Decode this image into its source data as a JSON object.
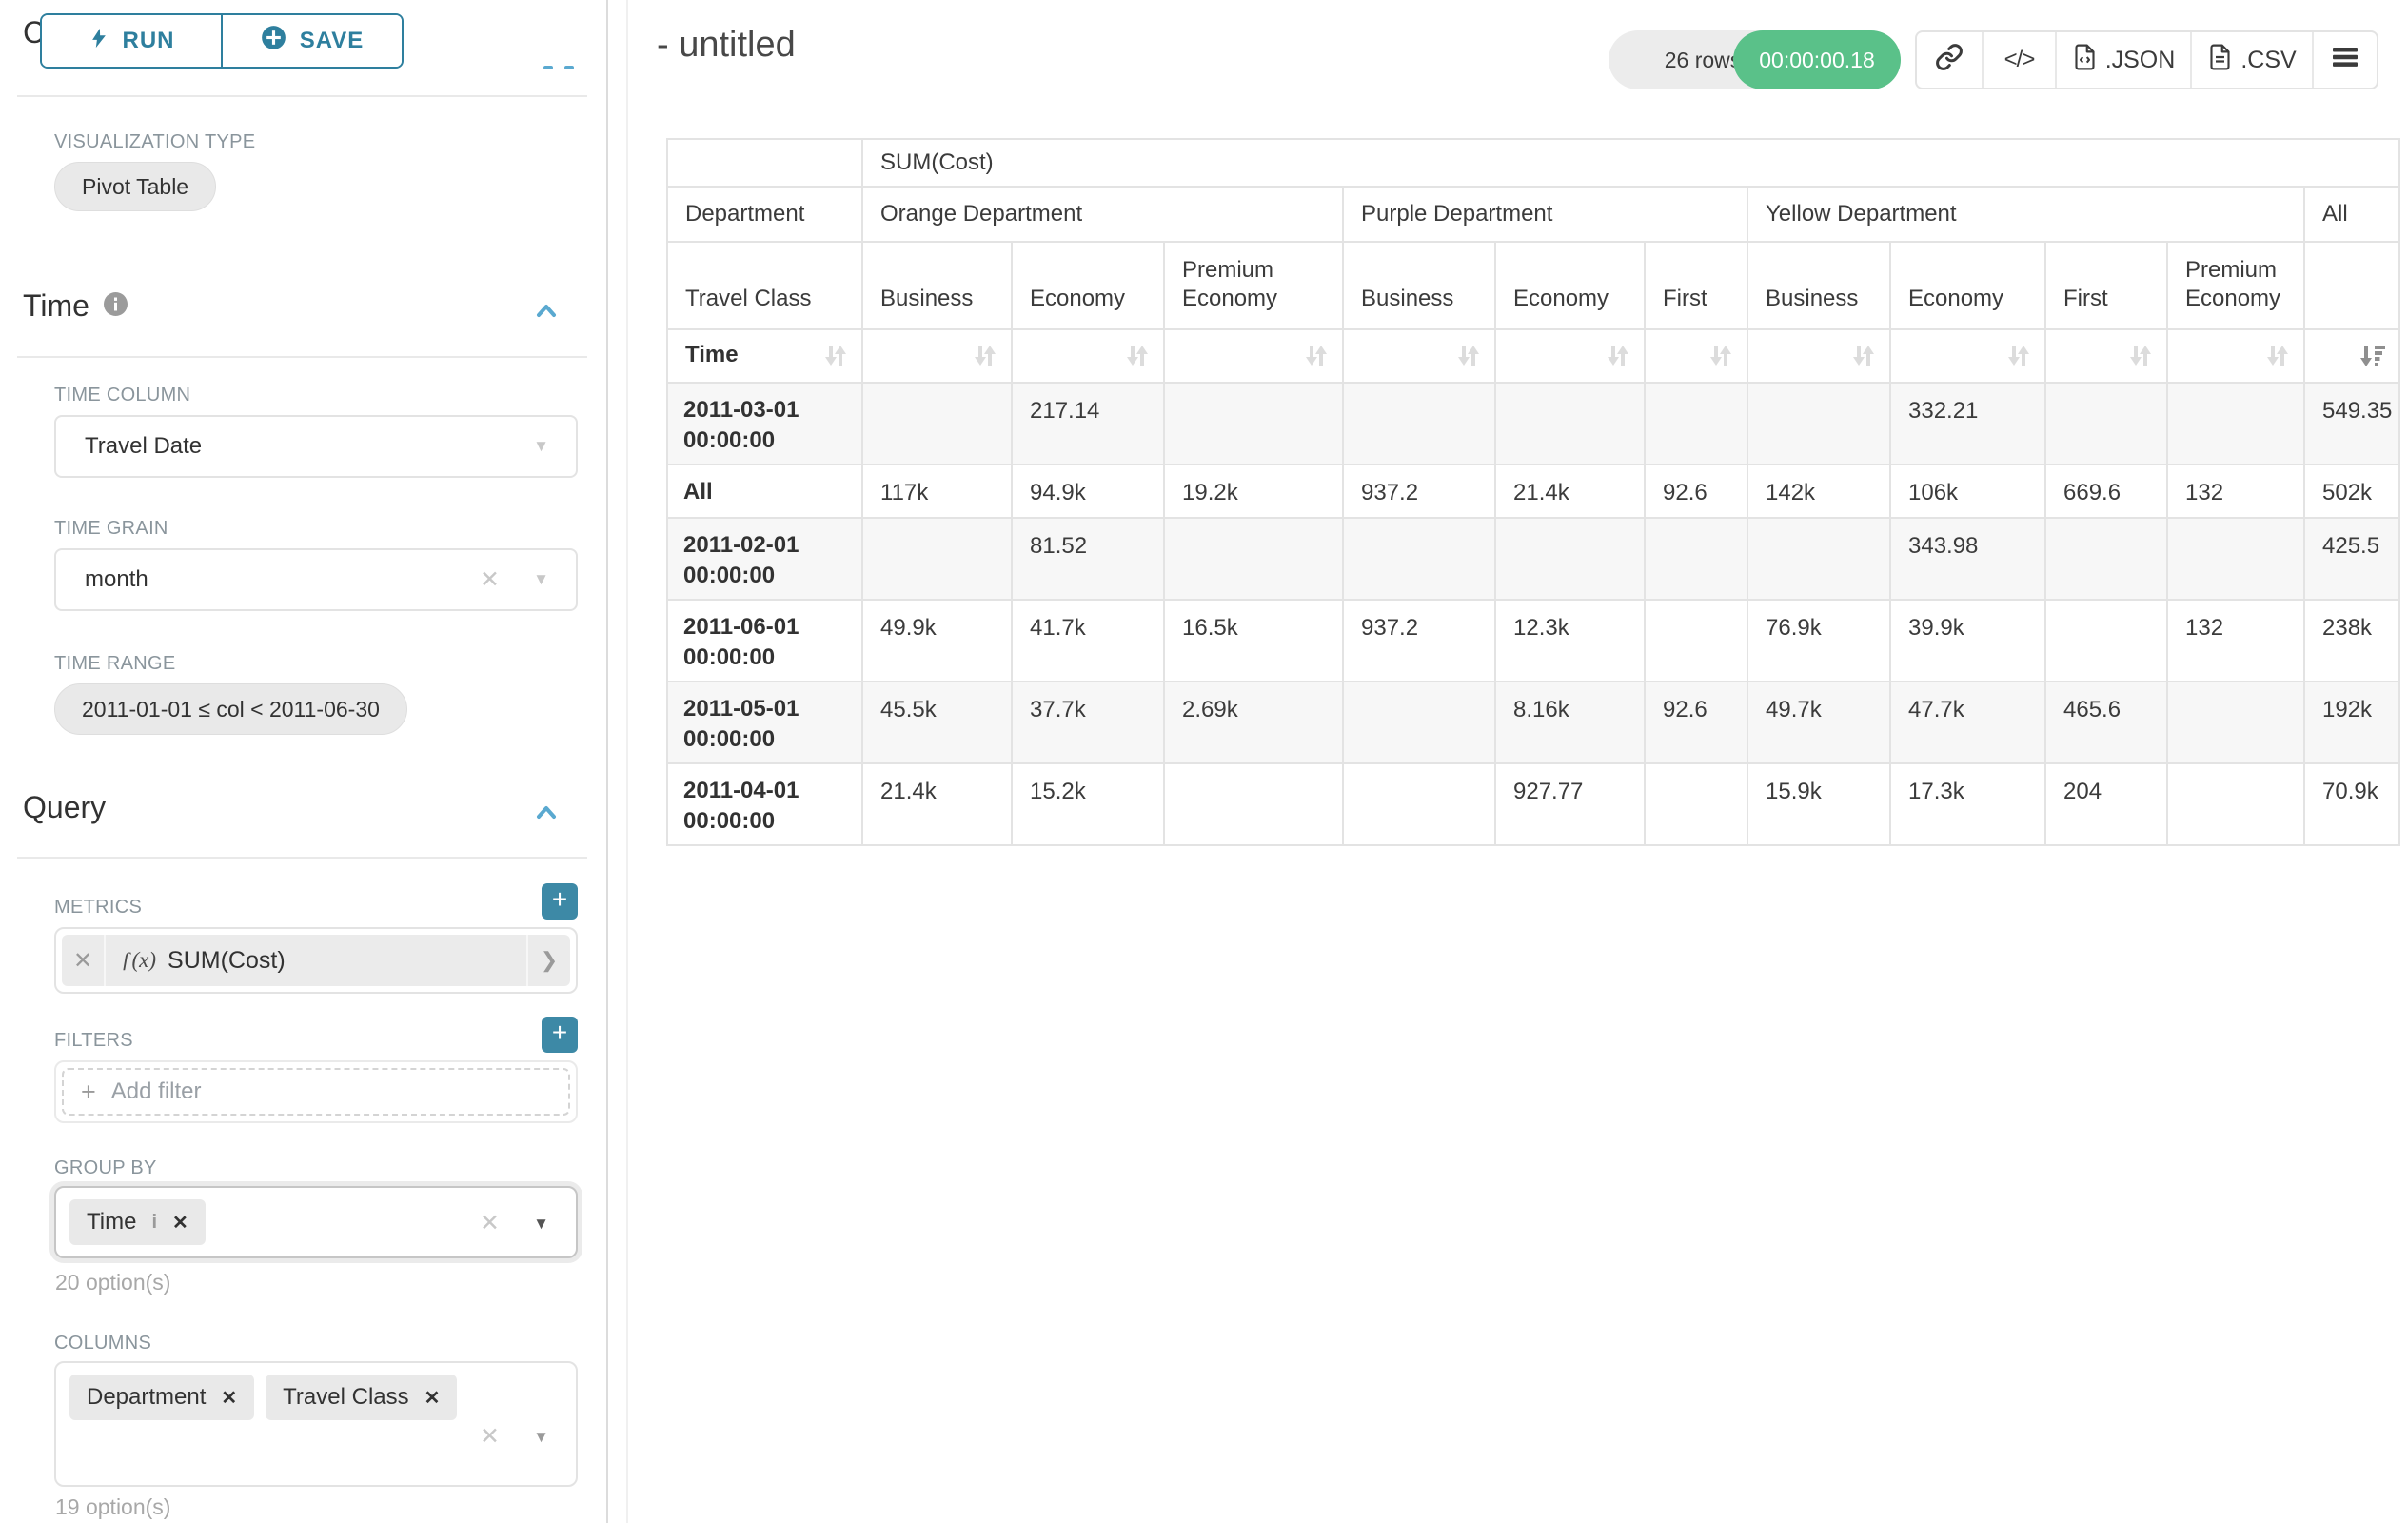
{
  "sidebar": {
    "run_label": "RUN",
    "save_label": "SAVE",
    "chart_type_heading": "Chart Type",
    "visualization_type": {
      "label": "VISUALIZATION TYPE",
      "value": "Pivot Table"
    },
    "time_section": {
      "heading": "Time",
      "time_column": {
        "label": "TIME COLUMN",
        "value": "Travel Date"
      },
      "time_grain": {
        "label": "TIME GRAIN",
        "value": "month"
      },
      "time_range": {
        "label": "TIME RANGE",
        "value": "2011-01-01 ≤ col < 2011-06-30"
      }
    },
    "query_section": {
      "heading": "Query",
      "metrics": {
        "label": "METRICS",
        "fx": "ƒ(x)",
        "value": "SUM(Cost)"
      },
      "filters": {
        "label": "FILTERS",
        "placeholder": "Add filter"
      },
      "group_by": {
        "label": "GROUP BY",
        "chips": [
          "Time"
        ],
        "helper": "20 option(s)"
      },
      "columns": {
        "label": "COLUMNS",
        "chips": [
          "Department",
          "Travel Class"
        ],
        "helper": "19 option(s)"
      }
    }
  },
  "header": {
    "title": "- untitled",
    "row_count_badge": "26 rows",
    "timer_badge": "00:00:00.18",
    "json_button": ".JSON",
    "csv_button": ".CSV"
  },
  "icons": {
    "code": "</>",
    "caret_down": "▼",
    "clear": "✕",
    "remove": "✕",
    "plus": "+",
    "info_i": "i",
    "chevron_right": "❯"
  },
  "colors": {
    "accent": "#2e7f9e",
    "accent_button": "#3d89a6",
    "accent_caret": "#5aa9d0",
    "success": "#5ac189"
  },
  "chart_data": {
    "type": "table",
    "title": "SUM(Cost) pivot table",
    "metric": "SUM(Cost)",
    "row_dimension": "Time",
    "column_dimensions": [
      "Department",
      "Travel Class"
    ],
    "column_groups": [
      {
        "label": "Orange Department",
        "children": [
          "Business",
          "Economy",
          "Premium Economy"
        ]
      },
      {
        "label": "Purple Department",
        "children": [
          "Business",
          "Economy",
          "First"
        ]
      },
      {
        "label": "Yellow Department",
        "children": [
          "Business",
          "Economy",
          "First",
          "Premium Economy"
        ]
      },
      {
        "label": "All",
        "children": [
          ""
        ]
      }
    ],
    "rows": [
      {
        "label": "2011-03-01 00:00:00",
        "values": [
          "",
          "217.14",
          "",
          "",
          "",
          "",
          "",
          "332.21",
          "",
          "",
          "549.35"
        ]
      },
      {
        "label": "All",
        "values": [
          "117k",
          "94.9k",
          "19.2k",
          "937.2",
          "21.4k",
          "92.6",
          "142k",
          "106k",
          "669.6",
          "132",
          "502k"
        ]
      },
      {
        "label": "2011-02-01 00:00:00",
        "values": [
          "",
          "81.52",
          "",
          "",
          "",
          "",
          "",
          "343.98",
          "",
          "",
          "425.5"
        ]
      },
      {
        "label": "2011-06-01 00:00:00",
        "values": [
          "49.9k",
          "41.7k",
          "16.5k",
          "937.2",
          "12.3k",
          "",
          "76.9k",
          "39.9k",
          "",
          "132",
          "238k"
        ]
      },
      {
        "label": "2011-05-01 00:00:00",
        "values": [
          "45.5k",
          "37.7k",
          "2.69k",
          "",
          "8.16k",
          "92.6",
          "49.7k",
          "47.7k",
          "465.6",
          "",
          "192k"
        ]
      },
      {
        "label": "2011-04-01 00:00:00",
        "values": [
          "21.4k",
          "15.2k",
          "",
          "",
          "927.77",
          "",
          "15.9k",
          "17.3k",
          "204",
          "",
          "70.9k"
        ]
      }
    ]
  }
}
